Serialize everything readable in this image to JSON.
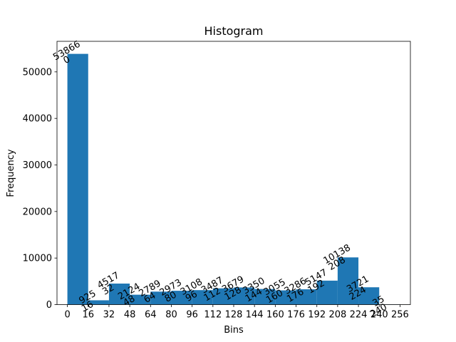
{
  "chart_data": {
    "type": "bar",
    "title": "Histogram",
    "xlabel": "Bins",
    "ylabel": "Frequency",
    "bin_width": 16,
    "bins": [
      {
        "start": 0,
        "count": 53866
      },
      {
        "start": 16,
        "count": 925
      },
      {
        "start": 32,
        "count": 4517
      },
      {
        "start": 48,
        "count": 2124
      },
      {
        "start": 64,
        "count": 2789
      },
      {
        "start": 80,
        "count": 2973
      },
      {
        "start": 96,
        "count": 3108
      },
      {
        "start": 112,
        "count": 3487
      },
      {
        "start": 128,
        "count": 3679
      },
      {
        "start": 144,
        "count": 3350
      },
      {
        "start": 160,
        "count": 3055
      },
      {
        "start": 176,
        "count": 3286
      },
      {
        "start": 192,
        "count": 5147
      },
      {
        "start": 208,
        "count": 10138
      },
      {
        "start": 224,
        "count": 3721
      },
      {
        "start": 240,
        "count": 35
      }
    ],
    "x_ticks": [
      "0",
      "16",
      "32",
      "48",
      "64",
      "80",
      "96",
      "112",
      "128",
      "144",
      "160",
      "176",
      "192",
      "208",
      "224",
      "240",
      "256"
    ],
    "y_ticks": [
      "0",
      "10000",
      "20000",
      "30000",
      "40000",
      "50000"
    ],
    "xlim": [
      -8,
      264
    ],
    "ylim": [
      0,
      56559
    ],
    "bar_color": "#1f77b4",
    "grid": false,
    "legend": "none"
  }
}
